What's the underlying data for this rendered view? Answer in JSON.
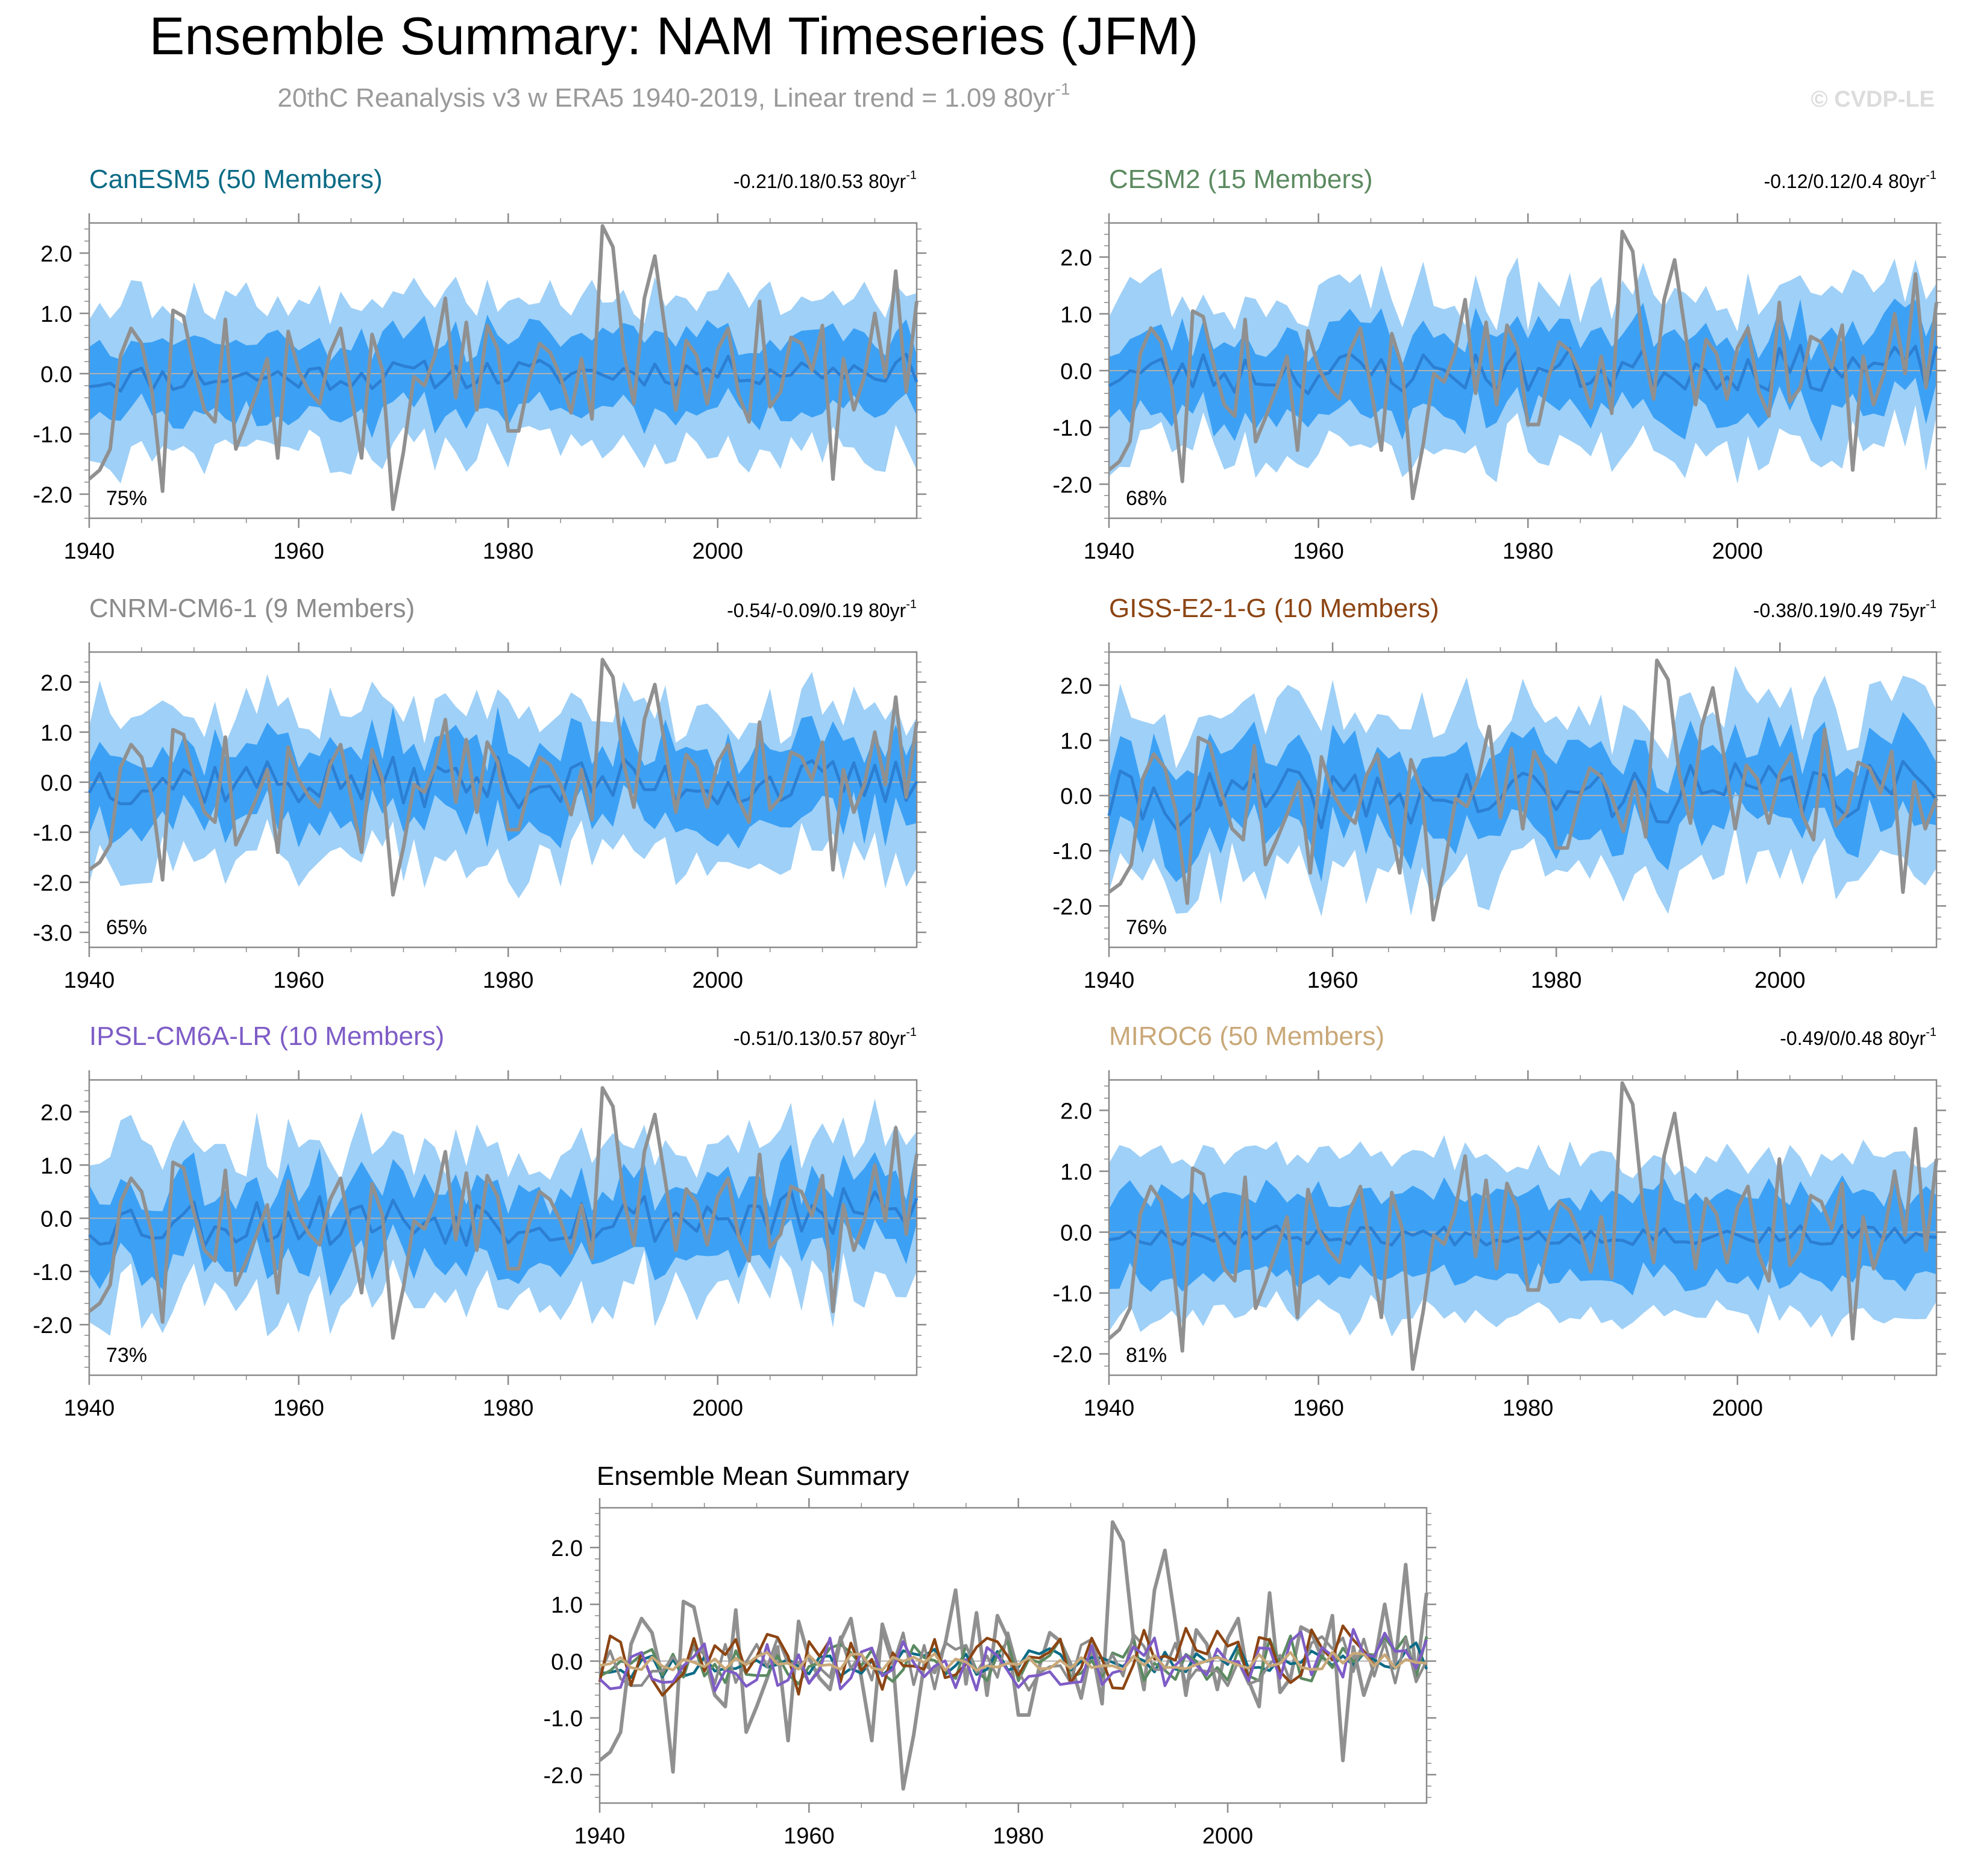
{
  "page": {
    "title": "Ensemble Summary: NAM Timeseries (JFM)",
    "subtitle": "20thC Reanalysis v3 w ERA5 1940-2019, Linear trend = 1.09 80yr",
    "subtitle_sup": "-1",
    "watermark": "© CVDP-LE"
  },
  "colors": {
    "band_outer": "#9fd0f7",
    "band_inner": "#3ca1f5",
    "ensemble_mean": "#2c7fd3",
    "observations": "#909090",
    "axis": "#8a8a8a",
    "zero_line": "#b0b0b0"
  },
  "chart_data": [
    {
      "type": "line",
      "model": "CanESM5 (50 Members)",
      "model_color": "#0b6b86",
      "trend": "-0.21/0.18/0.53 80yr",
      "trend_sup": "-1",
      "percent": "75%",
      "x_start": 1940,
      "x_end": 2019,
      "ylim": [
        -2.4,
        2.5
      ],
      "yticks": [
        -2,
        -1,
        0,
        1,
        2
      ],
      "ytick_labels": [
        "-2.0",
        "-1.0",
        "0.0",
        "1.0",
        "2.0"
      ],
      "xticks": [
        1940,
        1960,
        1980,
        2000
      ],
      "mean_amp": 0.18,
      "mean_offset": 0.0,
      "mean_trend": 0.18,
      "inner_width": 0.62,
      "outer_width": 1.25,
      "band_noise": 0.3,
      "seed": 11
    },
    {
      "type": "line",
      "model": "CESM2 (15 Members)",
      "model_color": "#5b8a60",
      "trend": "-0.12/0.12/0.4 80yr",
      "trend_sup": "-1",
      "percent": "68%",
      "x_start": 1940,
      "x_end": 2019,
      "ylim": [
        -2.6,
        2.6
      ],
      "yticks": [
        -2,
        -1,
        0,
        1,
        2
      ],
      "ytick_labels": [
        "-2.0",
        "-1.0",
        "0.0",
        "1.0",
        "2.0"
      ],
      "xticks": [
        1940,
        1960,
        1980,
        2000
      ],
      "mean_amp": 0.3,
      "mean_offset": 0.0,
      "mean_trend": 0.12,
      "inner_width": 0.7,
      "outer_width": 1.35,
      "band_noise": 0.35,
      "seed": 23
    },
    {
      "type": "line",
      "model": "CNRM-CM6-1 (9 Members)",
      "model_color": "#8c8c8c",
      "trend": "-0.54/-0.09/0.19 80yr",
      "trend_sup": "-1",
      "percent": "65%",
      "x_start": 1940,
      "x_end": 2019,
      "ylim": [
        -3.3,
        2.6
      ],
      "yticks": [
        -3,
        -2,
        -1,
        0,
        1,
        2
      ],
      "ytick_labels": [
        "-3.0",
        "-2.0",
        "-1.0",
        "0.0",
        "1.0",
        "2.0"
      ],
      "xticks": [
        1940,
        1960,
        1980,
        2000
      ],
      "mean_amp": 0.38,
      "mean_offset": 0.0,
      "mean_trend": -0.09,
      "inner_width": 0.75,
      "outer_width": 1.45,
      "band_noise": 0.4,
      "seed": 37
    },
    {
      "type": "line",
      "model": "GISS-E2-1-G (10 Members)",
      "model_color": "#8c4513",
      "trend": "-0.38/0.19/0.49 75yr",
      "trend_sup": "-1",
      "percent": "76%",
      "x_start": 1940,
      "x_end": 2014,
      "ylim": [
        -2.75,
        2.6
      ],
      "yticks": [
        -2,
        -1,
        0,
        1,
        2
      ],
      "ytick_labels": [
        "-2.0",
        "-1.0",
        "0.0",
        "1.0",
        "2.0"
      ],
      "xticks": [
        1940,
        1960,
        1980,
        2000
      ],
      "mean_amp": 0.4,
      "mean_offset": 0.0,
      "mean_trend": 0.19,
      "inner_width": 0.72,
      "outer_width": 1.45,
      "band_noise": 0.4,
      "seed": 41
    },
    {
      "type": "line",
      "model": "IPSL-CM6A-LR (10 Members)",
      "model_color": "#7e5cc6",
      "trend": "-0.51/0.13/0.57 80yr",
      "trend_sup": "-1",
      "percent": "73%",
      "x_start": 1940,
      "x_end": 2019,
      "ylim": [
        -2.95,
        2.6
      ],
      "yticks": [
        -2,
        -1,
        0,
        1,
        2
      ],
      "ytick_labels": [
        "-2.0",
        "-1.0",
        "0.0",
        "1.0",
        "2.0"
      ],
      "xticks": [
        1940,
        1960,
        1980,
        2000
      ],
      "mean_amp": 0.38,
      "mean_offset": 0.0,
      "mean_trend": 0.13,
      "inner_width": 0.72,
      "outer_width": 1.4,
      "band_noise": 0.4,
      "seed": 53
    },
    {
      "type": "line",
      "model": "MIROC6 (50 Members)",
      "model_color": "#c9a878",
      "trend": "-0.49/0/0.48 80yr",
      "trend_sup": "-1",
      "percent": "81%",
      "x_start": 1940,
      "x_end": 2019,
      "ylim": [
        -2.35,
        2.5
      ],
      "yticks": [
        -2,
        -1,
        0,
        1,
        2
      ],
      "ytick_labels": [
        "-2.0",
        "-1.0",
        "0.0",
        "1.0",
        "2.0"
      ],
      "xticks": [
        1940,
        1960,
        1980,
        2000
      ],
      "mean_amp": 0.12,
      "mean_offset": -0.05,
      "mean_trend": 0.0,
      "inner_width": 0.68,
      "outer_width": 1.3,
      "band_noise": 0.25,
      "seed": 67
    },
    {
      "type": "line",
      "title": "Ensemble Mean Summary",
      "x_start": 1940,
      "x_end": 2019,
      "ylim": [
        -2.5,
        2.7
      ],
      "yticks": [
        -2,
        -1,
        0,
        1,
        2
      ],
      "ytick_labels": [
        "-2.0",
        "-1.0",
        "0.0",
        "1.0",
        "2.0"
      ],
      "xticks": [
        1940,
        1960,
        1980,
        2000
      ],
      "series": [
        {
          "color": "#0b6b86",
          "seed": 11,
          "amp": 0.18,
          "trend": 0.18
        },
        {
          "color": "#5b8a60",
          "seed": 23,
          "amp": 0.3,
          "trend": 0.12
        },
        {
          "color": "#8c8c8c",
          "seed": 37,
          "amp": 0.38,
          "trend": -0.09
        },
        {
          "color": "#8c4513",
          "seed": 41,
          "amp": 0.4,
          "trend": 0.19
        },
        {
          "color": "#7e5cc6",
          "seed": 53,
          "amp": 0.38,
          "trend": 0.13
        },
        {
          "color": "#c9a878",
          "seed": 67,
          "amp": 0.12,
          "trend": 0.0
        }
      ]
    }
  ],
  "observations": {
    "x_start": 1940,
    "values": [
      -1.75,
      -1.6,
      -1.25,
      0.3,
      0.75,
      0.5,
      -0.3,
      -1.95,
      1.05,
      0.95,
      0.1,
      -0.6,
      -0.8,
      0.9,
      -1.25,
      -0.8,
      -0.3,
      0.25,
      -1.4,
      0.7,
      0.05,
      -0.3,
      -0.5,
      0.35,
      0.75,
      -0.3,
      -1.4,
      0.65,
      0.05,
      -2.25,
      -1.3,
      -0.05,
      -0.2,
      0.3,
      1.25,
      -0.4,
      0.85,
      -0.6,
      0.8,
      0.4,
      -0.95,
      -0.95,
      -0.1,
      0.5,
      0.35,
      -0.05,
      -0.65,
      0.25,
      -0.75,
      2.45,
      2.1,
      0.4,
      -0.5,
      1.25,
      1.95,
      0.7,
      -0.6,
      0.55,
      0.3,
      -0.5,
      0.4,
      0.75,
      -0.35,
      -0.8,
      1.2,
      -0.55,
      -0.3,
      0.6,
      0.5,
      0.05,
      0.8,
      -1.75,
      0.25,
      -0.6,
      -0.05,
      1.0,
      -0.05,
      1.7,
      -0.3,
      1.2
    ]
  }
}
